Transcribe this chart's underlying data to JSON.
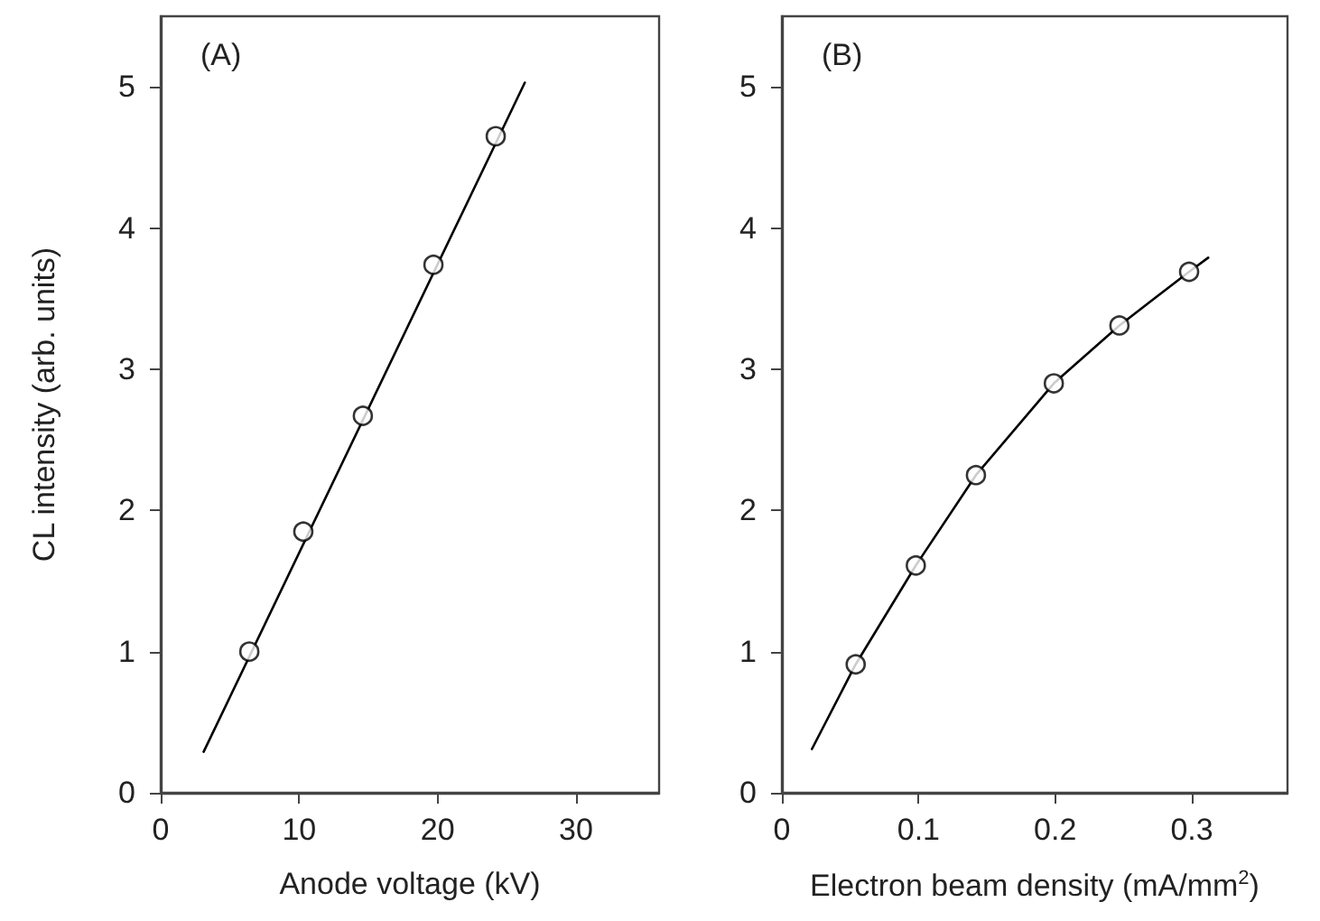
{
  "chart_data": [
    {
      "type": "scatter",
      "xlabel": "Anode voltage (kV)",
      "ylabel": "CL intensity (arb. units)",
      "annotations": [
        "(A)"
      ],
      "xlim": [
        0,
        36
      ],
      "xticks": [
        0,
        10,
        20,
        30
      ],
      "ylim": [
        0,
        5.5
      ],
      "yticks": [
        0,
        1,
        2,
        3,
        4,
        5
      ],
      "grid": false,
      "marker": "circle",
      "series": [
        {
          "color": "#000000",
          "x": [
            6.4,
            10.3,
            14.6,
            19.7,
            24.2
          ],
          "values": [
            1.0,
            1.85,
            2.67,
            3.74,
            4.65
          ]
        },
        {
          "type": "line",
          "color": "#000000",
          "marker": "none",
          "x": [
            3.1,
            26.3
          ],
          "values": [
            0.29,
            5.03
          ]
        }
      ]
    },
    {
      "type": "scatter",
      "xlabel": "Electron beam density (mA/mm$^{2}$)",
      "annotations": [
        "(B)"
      ],
      "xlim": [
        0,
        0.37
      ],
      "xticks": [
        0,
        0.1,
        0.2,
        0.3
      ],
      "ylim": [
        0,
        5.5
      ],
      "yticks": [
        0,
        1,
        2,
        3,
        4,
        5
      ],
      "grid": false,
      "marker": "circle",
      "series": [
        {
          "color": "#000000",
          "x": [
            0.054,
            0.098,
            0.142,
            0.199,
            0.247,
            0.298
          ],
          "values": [
            0.91,
            1.61,
            2.25,
            2.9,
            3.31,
            3.69
          ]
        },
        {
          "type": "line",
          "color": "#000000",
          "marker": "none",
          "x": [
            0.022,
            0.054,
            0.098,
            0.142,
            0.199,
            0.247,
            0.298,
            0.312
          ],
          "values": [
            0.31,
            0.91,
            1.61,
            2.25,
            2.9,
            3.31,
            3.69,
            3.79
          ]
        }
      ]
    }
  ]
}
